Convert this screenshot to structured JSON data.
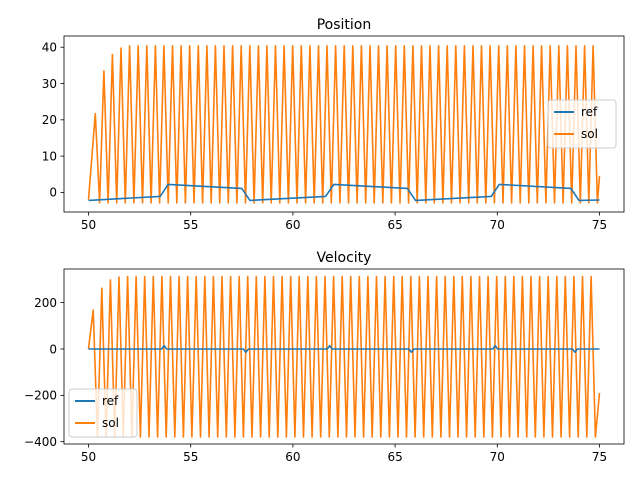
{
  "colors": {
    "ref": "#1f77b4",
    "sol": "#ff7f0e"
  },
  "chart_data": [
    {
      "type": "line",
      "title": "Position",
      "xlim": [
        48.8,
        76.2
      ],
      "ylim": [
        -5.4,
        43.1
      ],
      "xticks": [
        50,
        55,
        60,
        65,
        70,
        75
      ],
      "yticks": [
        0,
        10,
        20,
        30,
        40
      ],
      "legend_position": "center-right",
      "sol": {
        "x_start": 50,
        "x_end": 75,
        "period": 0.42,
        "x_peak_first": 50.33,
        "min": -2.9,
        "peaks_first": [
          21.7,
          33.5,
          38.0,
          39.8
        ],
        "peak_max": 40.4,
        "last": {
          "x": 75,
          "y": 4.5
        }
      },
      "ref": {
        "segments": [
          {
            "x0": 50.0,
            "x1": 53.5,
            "y0": -2.2,
            "y1": -1.1
          },
          {
            "x0": 53.9,
            "x1": 57.5,
            "y0": 2.2,
            "y1": 1.1
          },
          {
            "x0": 57.9,
            "x1": 61.6,
            "y0": -2.2,
            "y1": -1.1
          },
          {
            "x0": 62.0,
            "x1": 65.6,
            "y0": 2.2,
            "y1": 1.1
          },
          {
            "x0": 66.0,
            "x1": 69.7,
            "y0": -2.2,
            "y1": -1.1
          },
          {
            "x0": 70.1,
            "x1": 73.6,
            "y0": 2.2,
            "y1": 1.1
          },
          {
            "x0": 74.0,
            "x1": 75.0,
            "y0": -2.2,
            "y1": -2.1
          }
        ]
      },
      "series": [
        {
          "name": "ref"
        },
        {
          "name": "sol"
        }
      ]
    },
    {
      "type": "line",
      "title": "Velocity",
      "xlim": [
        48.8,
        76.2
      ],
      "ylim": [
        -410,
        345
      ],
      "xticks": [
        50,
        55,
        60,
        65,
        70,
        75
      ],
      "yticks": [
        -400,
        -200,
        0,
        200
      ],
      "legend_position": "lower-left",
      "sol": {
        "x_start": 50,
        "x_end": 75,
        "period": 0.42,
        "x_peak_first": 50.23,
        "trough": -380,
        "peaks_first": [
          168,
          262,
          298,
          310
        ],
        "peak_max": 312,
        "last": {
          "x": 75,
          "y": -190
        }
      },
      "ref": {
        "baseline": 0,
        "blips": [
          {
            "x": 53.7,
            "y": 14
          },
          {
            "x": 57.7,
            "y": -14
          },
          {
            "x": 61.8,
            "y": 14
          },
          {
            "x": 65.8,
            "y": -14
          },
          {
            "x": 69.9,
            "y": 14
          },
          {
            "x": 73.8,
            "y": -14
          }
        ]
      },
      "series": [
        {
          "name": "ref"
        },
        {
          "name": "sol"
        }
      ]
    }
  ]
}
